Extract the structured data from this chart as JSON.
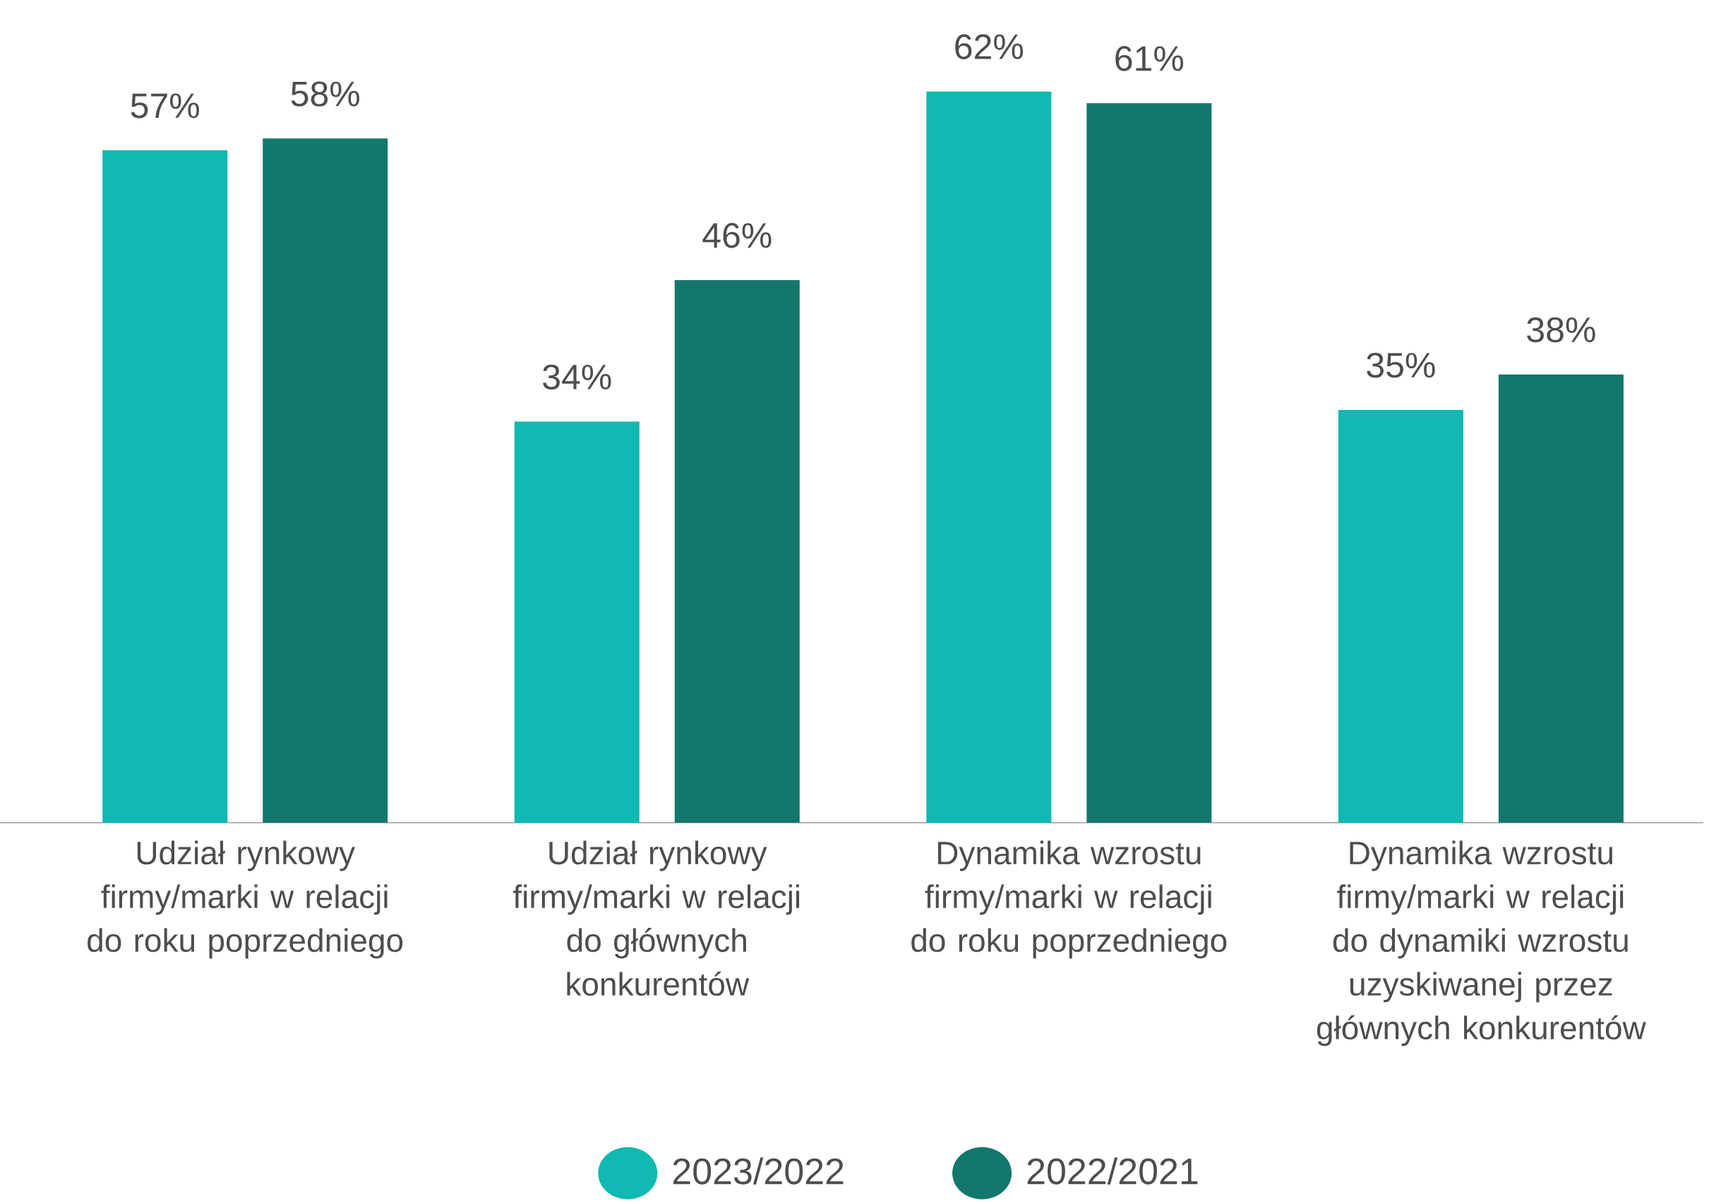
{
  "chart_data": {
    "type": "bar",
    "categories": [
      "Udział rynkowy firmy/marki w relacji do roku poprzedniego",
      "Udział rynkowy firmy/marki w relacji do głównych konkurentów",
      "Dynamika wzrostu firmy/marki w relacji do roku poprzedniego",
      "Dynamika wzrostu firmy/marki w relacji do dynamiki wzrostu uzyskiwanej przez głównych konkurentów"
    ],
    "series": [
      {
        "name": "2023/2022",
        "color": "#10b9b1",
        "values": [
          57,
          34,
          62,
          35
        ],
        "value_labels": [
          "57%",
          "34%",
          "62%",
          "35%"
        ]
      },
      {
        "name": "2022/2021",
        "color": "#13776c",
        "values": [
          58,
          46,
          61,
          38
        ],
        "value_labels": [
          "58%",
          "46%",
          "61%",
          "38%"
        ]
      }
    ],
    "legend": "bottom"
  }
}
